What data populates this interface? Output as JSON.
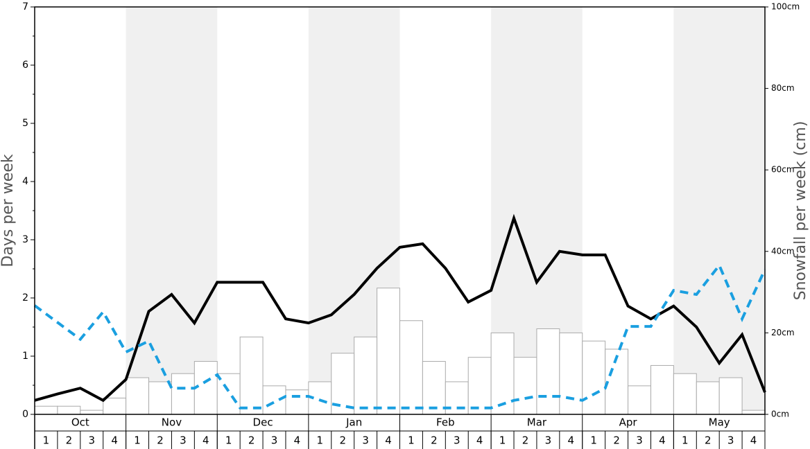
{
  "chart_data": {
    "type": "bar_line",
    "ylabel": "Days per week",
    "y2label": "Snowfall per week (cm)",
    "months": [
      "Oct",
      "Nov",
      "Dec",
      "Jan",
      "Feb",
      "Mar",
      "Apr",
      "May"
    ],
    "categories": [
      "1",
      "2",
      "3",
      "4",
      "1",
      "2",
      "3",
      "4",
      "1",
      "2",
      "3",
      "4",
      "1",
      "2",
      "3",
      "4",
      "1",
      "2",
      "3",
      "4",
      "1",
      "2",
      "3",
      "4",
      "1",
      "2",
      "3",
      "4",
      "1",
      "2",
      "3",
      "4"
    ],
    "ylim": [
      0,
      7
    ],
    "yticks": [
      0,
      1,
      2,
      3,
      4,
      5,
      6,
      7
    ],
    "yminor_ticks": [
      0.5,
      1.5,
      2.5,
      3.5,
      4.5,
      5.5,
      6.5
    ],
    "y2lim": [
      0,
      100
    ],
    "y2ticks": [
      {
        "value": 0,
        "label": "0cm"
      },
      {
        "value": 20,
        "label": "20cm"
      },
      {
        "value": 40,
        "label": "40cm"
      },
      {
        "value": 60,
        "label": "60cm"
      },
      {
        "value": 80,
        "label": "80cm"
      },
      {
        "value": 100,
        "label": "100cm"
      }
    ],
    "bars": {
      "axis": "y2",
      "color": "#ffffff",
      "values": [
        2,
        2,
        1,
        4,
        9,
        8,
        10,
        13,
        10,
        19,
        7,
        6,
        8,
        15,
        19,
        31,
        23,
        13,
        8,
        14,
        20,
        14,
        21,
        20,
        18,
        16,
        7,
        12,
        10,
        8,
        9,
        1
      ]
    },
    "xlim": [
      0,
      32
    ],
    "x": [
      0,
      1,
      2,
      3,
      4,
      5,
      6,
      7,
      8,
      9,
      10,
      11,
      12,
      13,
      14,
      15,
      16,
      17,
      18,
      19,
      20,
      21,
      22,
      23,
      24,
      25,
      26,
      27,
      28,
      29,
      30,
      31,
      32
    ],
    "series": [
      {
        "color": "#000000",
        "dashed": false,
        "values": [
          0.24,
          0.35,
          0.45,
          0.24,
          0.6,
          1.77,
          2.06,
          1.57,
          2.27,
          2.27,
          2.27,
          1.64,
          1.57,
          1.71,
          2.06,
          2.51,
          2.87,
          2.93,
          2.51,
          1.93,
          2.13,
          3.37,
          2.27,
          2.8,
          2.74,
          2.74,
          1.86,
          1.64,
          1.86,
          1.5,
          0.88,
          1.37,
          0.38
        ]
      },
      {
        "color": "#1a9fe0",
        "dashed": true,
        "values": [
          1.87,
          1.58,
          1.29,
          1.76,
          1.07,
          1.26,
          0.45,
          0.45,
          0.68,
          0.11,
          0.11,
          0.31,
          0.31,
          0.18,
          0.11,
          0.11,
          0.11,
          0.11,
          0.11,
          0.11,
          0.11,
          0.24,
          0.31,
          0.31,
          0.24,
          0.45,
          1.51,
          1.51,
          2.13,
          2.06,
          2.56,
          1.64,
          2.49
        ]
      }
    ]
  }
}
